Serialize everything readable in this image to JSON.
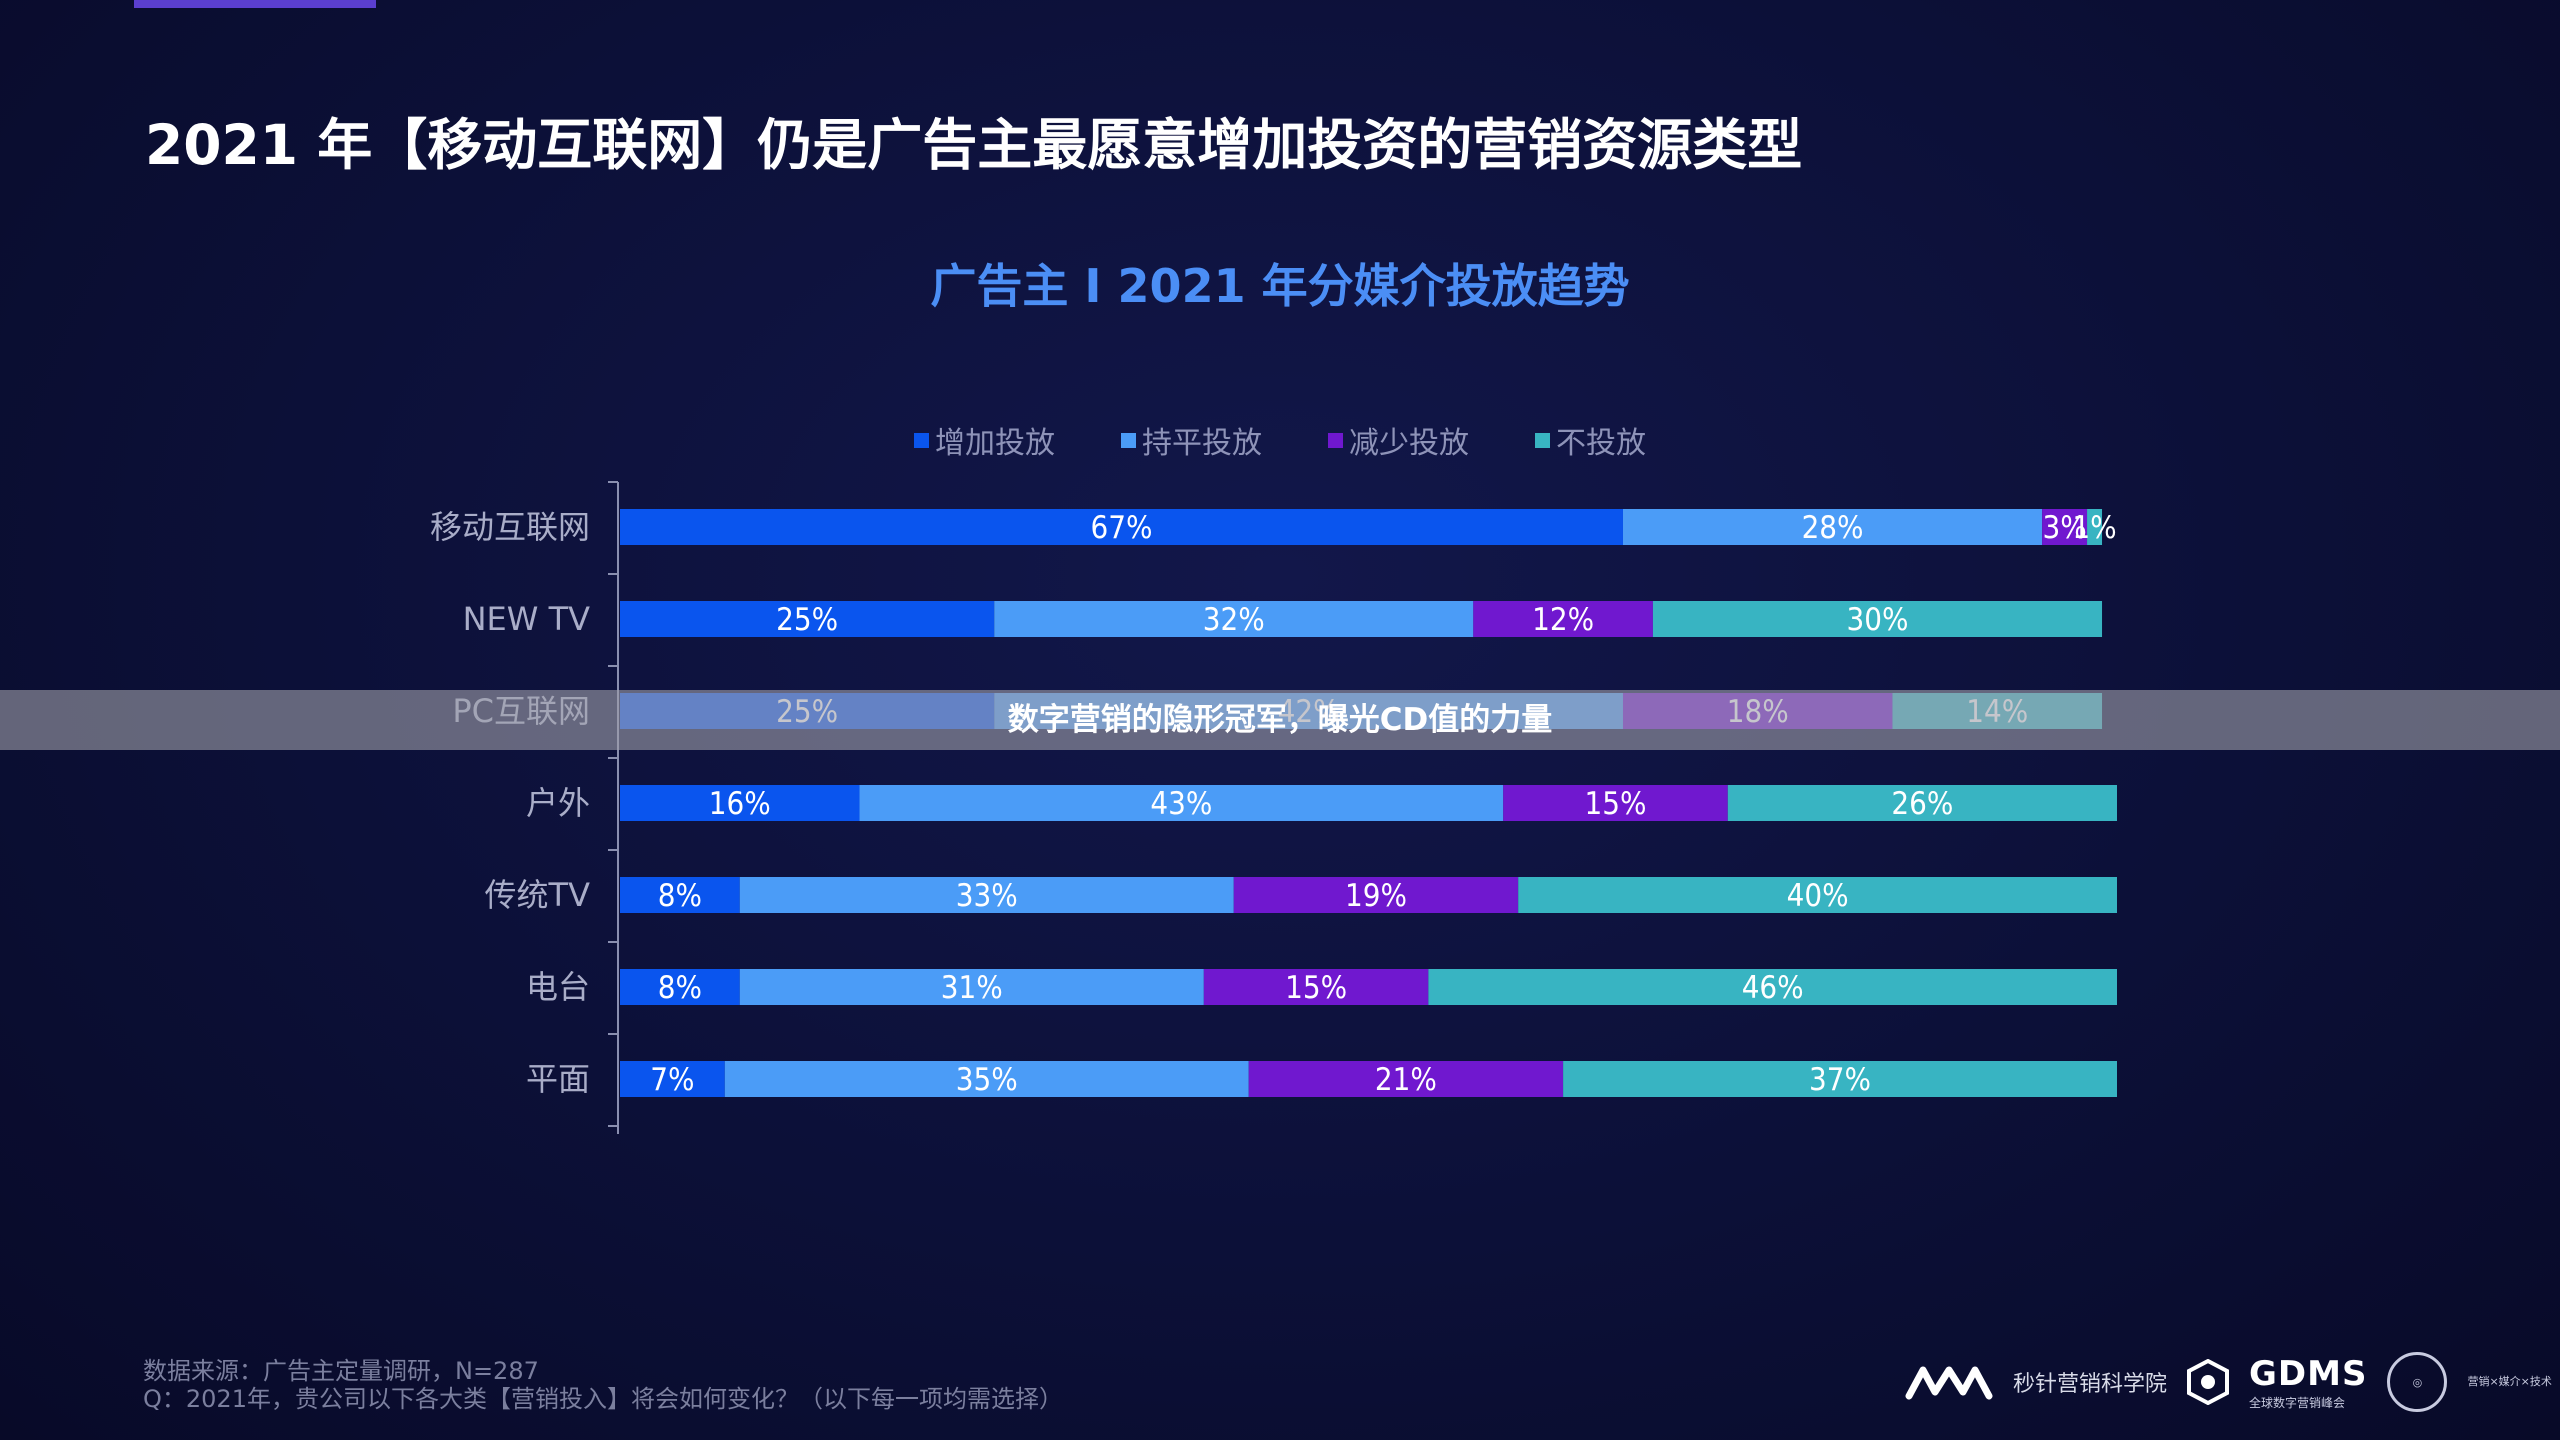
{
  "page": {
    "title": "2021 年【移动互联网】仍是广告主最愿意增加投资的营销资源类型",
    "overlay_caption": "数字营销的隐形冠军，曝光CD值的力量",
    "source_line1": "数据来源：广告主定量调研，N=287",
    "source_line2": "Q：2021年，贵公司以下各大类【营销投入】将会如何变化？（以下每一项均需选择）",
    "logos": {
      "miaozhen_text": "秒针营销科学院",
      "gdms_text": "GDMS",
      "gdms_sub": "全球数字营销峰会",
      "circle_text": "营销×媒介×技术"
    }
  },
  "colors": {
    "increase": "#0a55ee",
    "flat": "#4b9cf7",
    "decrease": "#7018cf",
    "none": "#38b4c2",
    "title_blue": "#4b8ef5"
  },
  "chart_data": {
    "type": "bar",
    "orientation": "horizontal",
    "stacked": true,
    "percent": true,
    "title": "广告主 I 2021 年分媒介投放趋势",
    "legend_position": "top",
    "categories": [
      "移动互联网",
      "NEW TV",
      "PC互联网",
      "户外",
      "传统TV",
      "电台",
      "平面"
    ],
    "series": [
      {
        "name": "增加投放",
        "color": "#0a55ee",
        "values": [
          67,
          25,
          25,
          16,
          8,
          8,
          7
        ]
      },
      {
        "name": "持平投放",
        "color": "#4b9cf7",
        "values": [
          28,
          32,
          42,
          43,
          33,
          31,
          35
        ]
      },
      {
        "name": "减少投放",
        "color": "#7018cf",
        "values": [
          3,
          12,
          18,
          15,
          19,
          15,
          21
        ]
      },
      {
        "name": "不投放",
        "color": "#38b4c2",
        "values": [
          1,
          30,
          14,
          26,
          40,
          46,
          37
        ]
      }
    ],
    "xlim": [
      0,
      100
    ]
  }
}
